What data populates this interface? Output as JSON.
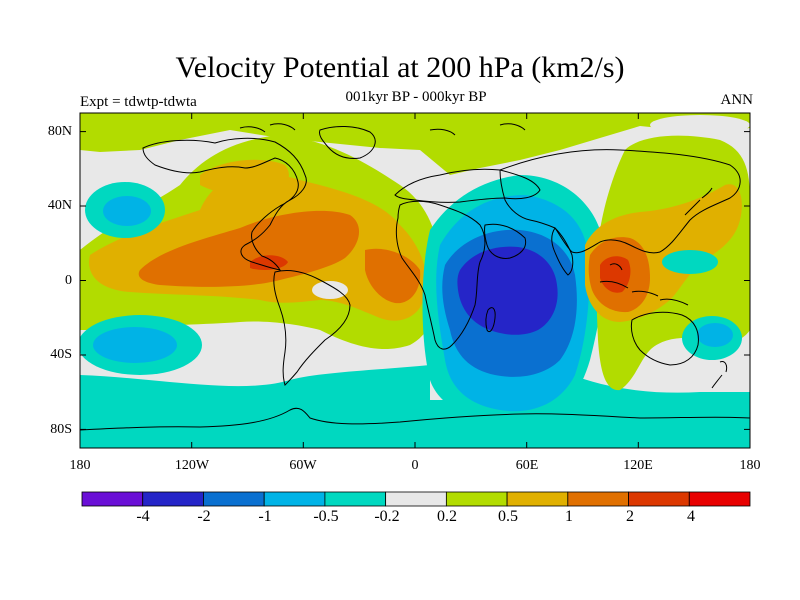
{
  "header": {
    "title": "Velocity Potential at 200 hPa (km2/s)",
    "subtitle": "001kyr BP - 000kyr BP",
    "left": "Expt = tdwtp-tdwta",
    "right": "ANN"
  },
  "axes": {
    "lat_ticks": [
      "80N",
      "40N",
      "0",
      "40S",
      "80S"
    ],
    "lon_ticks": [
      "180",
      "120W",
      "60W",
      "0",
      "60E",
      "120E",
      "180"
    ]
  },
  "colorbar": {
    "colors": [
      "#6a0fd6",
      "#2525c8",
      "#0a70d0",
      "#00b3e6",
      "#00d8c0",
      "#e8e8e8",
      "#b2dc00",
      "#e0b000",
      "#e07000",
      "#dc3800",
      "#e80000"
    ],
    "labels": [
      "-4",
      "-2",
      "-1",
      "-0.5",
      "-0.2",
      "0.2",
      "0.5",
      "1",
      "2",
      "4"
    ]
  },
  "chart_data": {
    "type": "heatmap",
    "title": "Velocity Potential at 200 hPa (km2/s)",
    "subtitle": "001kyr BP - 000kyr BP",
    "units": "km2/s",
    "xrange": [
      -180,
      180
    ],
    "yrange": [
      -90,
      90
    ],
    "levels": [
      -4,
      -2,
      -1,
      -0.5,
      -0.2,
      0.2,
      0.5,
      1,
      2,
      4
    ],
    "centers": [
      {
        "lon": 50,
        "lat": -3,
        "value": -2.6
      },
      {
        "lon": 105,
        "lat": 5,
        "value": 1.8
      },
      {
        "lon": -95,
        "lat": 8,
        "value": 1.6
      },
      {
        "lon": -165,
        "lat": 35,
        "value": -0.4
      },
      {
        "lon": -170,
        "lat": -30,
        "value": -0.4
      }
    ]
  }
}
